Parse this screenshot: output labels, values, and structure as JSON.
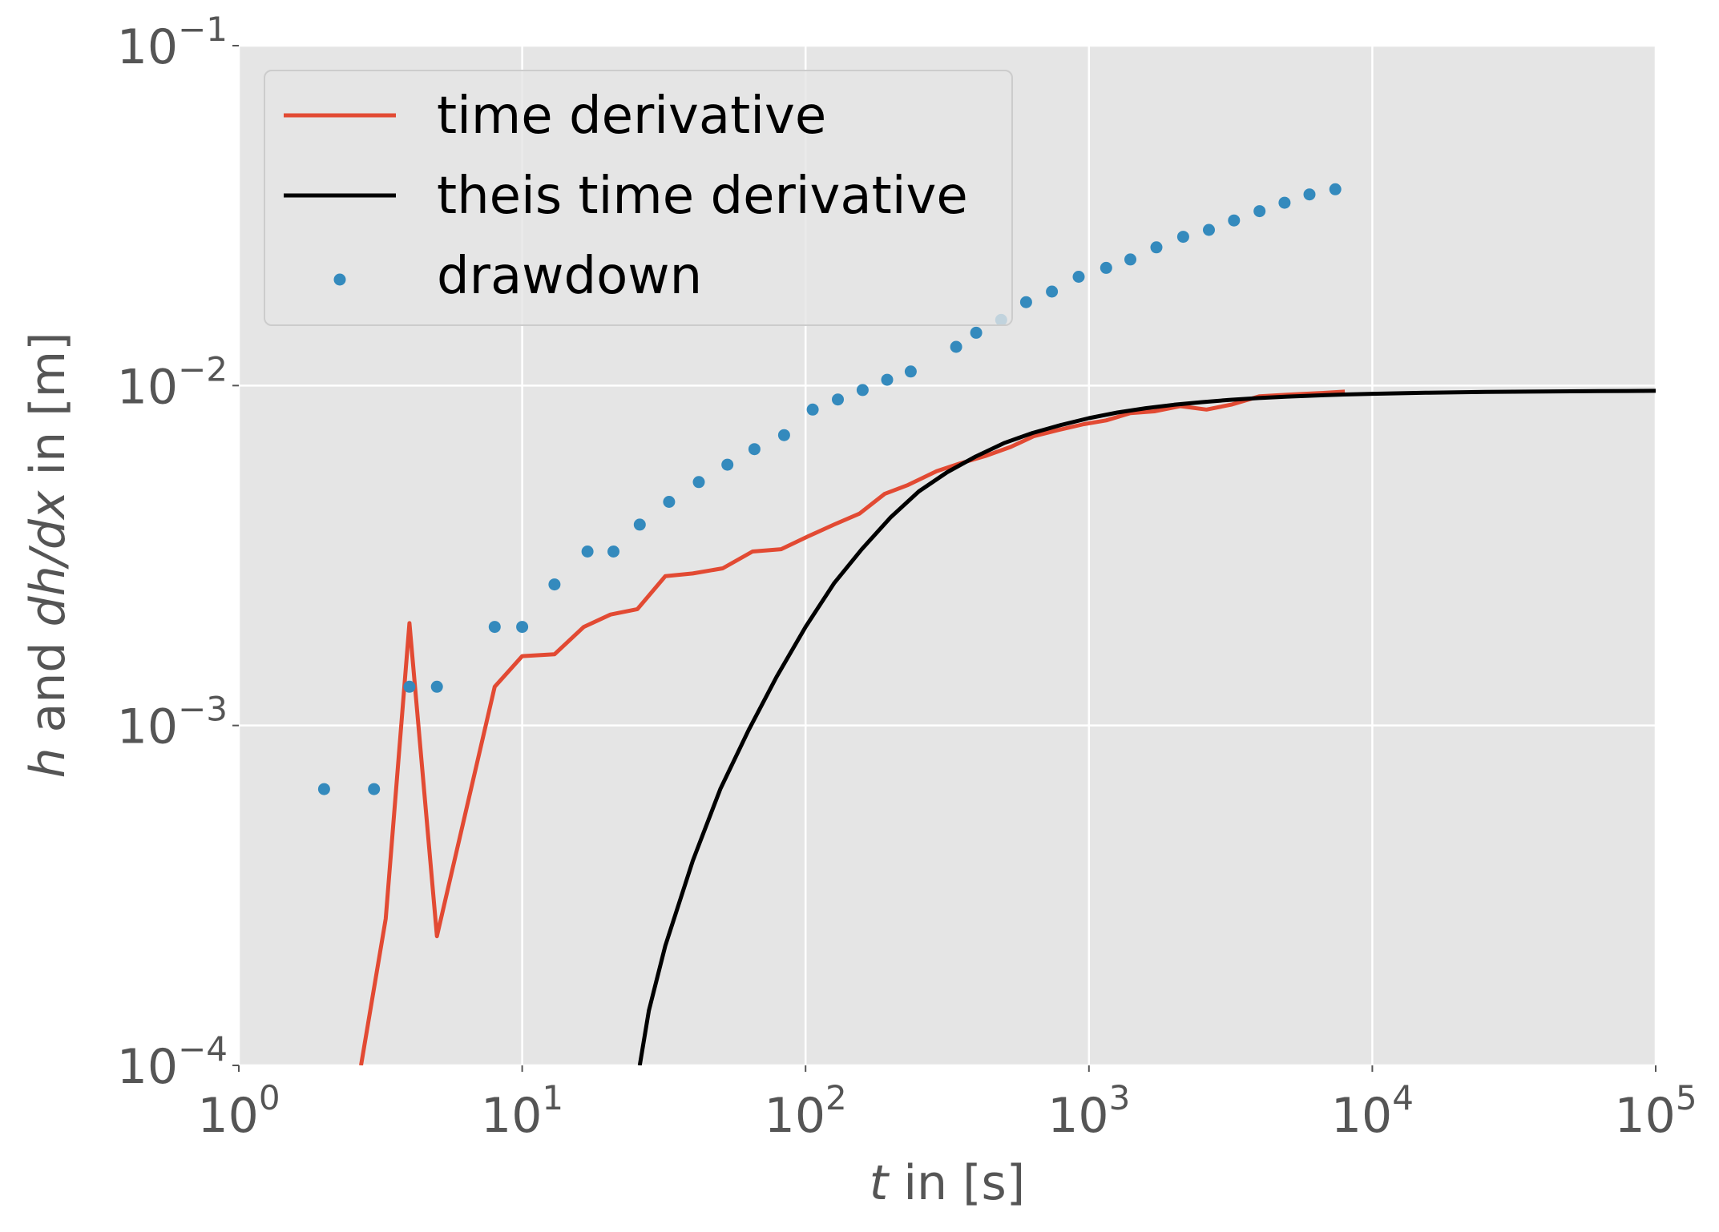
{
  "chart_data": {
    "type": "line",
    "title": "",
    "xscale": "log",
    "yscale": "log",
    "xlim": [
      1,
      100000
    ],
    "ylim": [
      0.0001,
      0.1
    ],
    "grid": true,
    "legend_position": "top-left",
    "xlabel": {
      "italic": "t",
      "rest": " in [s]"
    },
    "ylabel": {
      "italic1": "h",
      "mid": " and ",
      "italic2": "dh/dx",
      "rest": " in [m]"
    },
    "x_ticks": [
      {
        "value": 1,
        "base": "10",
        "exp": "0"
      },
      {
        "value": 10,
        "base": "10",
        "exp": "1"
      },
      {
        "value": 100,
        "base": "10",
        "exp": "2"
      },
      {
        "value": 1000,
        "base": "10",
        "exp": "3"
      },
      {
        "value": 10000,
        "base": "10",
        "exp": "4"
      },
      {
        "value": 100000,
        "base": "10",
        "exp": "5"
      }
    ],
    "y_ticks": [
      {
        "value": 0.0001,
        "base": "10",
        "exp": "−4"
      },
      {
        "value": 0.001,
        "base": "10",
        "exp": "−3"
      },
      {
        "value": 0.01,
        "base": "10",
        "exp": "−2"
      },
      {
        "value": 0.1,
        "base": "10",
        "exp": "−1"
      }
    ],
    "series": [
      {
        "name": "time derivative",
        "kind": "line",
        "color": "#E24A33",
        "x": [
          2.7,
          3.3,
          4,
          5,
          8,
          10,
          13,
          16.5,
          20.5,
          25.5,
          32,
          40,
          51,
          65,
          82,
          102,
          126,
          155,
          190,
          230,
          290,
          350,
          430,
          530,
          640,
          780,
          960,
          1150,
          1400,
          1700,
          2100,
          2600,
          3200,
          4000,
          5000,
          6500,
          8000
        ],
        "y": [
          0.0001,
          0.00027,
          0.002,
          0.00024,
          0.0013,
          0.0016,
          0.00162,
          0.00195,
          0.00212,
          0.0022,
          0.00275,
          0.0028,
          0.0029,
          0.00325,
          0.0033,
          0.0036,
          0.0039,
          0.0042,
          0.0048,
          0.0051,
          0.0056,
          0.0059,
          0.0062,
          0.0066,
          0.0071,
          0.0074,
          0.0077,
          0.0079,
          0.0083,
          0.0084,
          0.0087,
          0.0085,
          0.0088,
          0.0093,
          0.0094,
          0.0095,
          0.0096
        ]
      },
      {
        "name": "theis time derivative",
        "kind": "line",
        "color": "#000000",
        "x": [
          26,
          28,
          32,
          40,
          50,
          63,
          79,
          100,
          126,
          158,
          200,
          251,
          316,
          398,
          501,
          631,
          794,
          1000,
          1259,
          1585,
          1995,
          2512,
          3162,
          3981,
          5012,
          6310,
          7943,
          10000,
          15849,
          25119,
          39811,
          63096,
          100000
        ],
        "y": [
          0.0001,
          0.000145,
          0.000225,
          0.0004,
          0.00065,
          0.00097,
          0.00139,
          0.00195,
          0.00262,
          0.0033,
          0.0041,
          0.00488,
          0.00556,
          0.00618,
          0.00677,
          0.00725,
          0.00765,
          0.00802,
          0.00833,
          0.00858,
          0.00878,
          0.00894,
          0.00908,
          0.00919,
          0.00928,
          0.00935,
          0.00941,
          0.00946,
          0.00953,
          0.00958,
          0.00961,
          0.00963,
          0.00965
        ]
      },
      {
        "name": "drawdown",
        "kind": "scatter",
        "color": "#348ABD",
        "x": [
          2,
          3,
          4,
          5,
          8,
          10,
          13,
          17,
          21,
          26,
          33,
          42,
          53,
          66,
          84,
          106,
          130,
          159,
          194,
          235,
          340,
          400,
          490,
          600,
          740,
          920,
          1150,
          1400,
          1730,
          2150,
          2650,
          3250,
          4000,
          4900,
          6000,
          7400
        ],
        "y": [
          0.00065,
          0.00065,
          0.0013,
          0.0013,
          0.00195,
          0.00195,
          0.0026,
          0.00325,
          0.00325,
          0.0039,
          0.00455,
          0.0052,
          0.00585,
          0.0065,
          0.00715,
          0.0085,
          0.0091,
          0.0097,
          0.0104,
          0.011,
          0.013,
          0.0143,
          0.0156,
          0.0176,
          0.0189,
          0.0209,
          0.0222,
          0.0235,
          0.0255,
          0.0274,
          0.0287,
          0.0306,
          0.0326,
          0.0345,
          0.0365,
          0.0378
        ]
      }
    ]
  }
}
